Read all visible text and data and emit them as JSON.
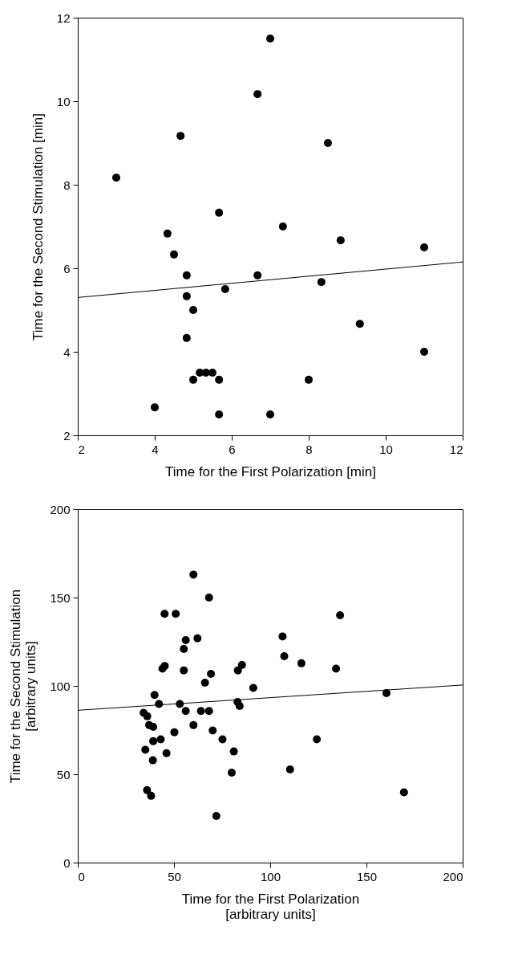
{
  "chart_data": [
    {
      "type": "scatter",
      "xlabel": "Time for the First Polarization [min]",
      "ylabel": "Time for the Second Stimulation [min]",
      "xlim": [
        2,
        12
      ],
      "ylim": [
        2,
        12
      ],
      "xticks": [
        2,
        4,
        6,
        8,
        10,
        12
      ],
      "yticks": [
        2,
        4,
        6,
        8,
        10,
        12
      ],
      "series": [
        {
          "marker": "circle",
          "color": "#000000",
          "x": [
            3,
            4,
            4.33,
            4.5,
            4.67,
            4.83,
            4.83,
            4.83,
            5,
            5,
            5.17,
            5.33,
            5.5,
            5.67,
            5.67,
            5.67,
            5.83,
            6.67,
            6.67,
            7,
            7,
            7.33,
            8,
            8.33,
            8.5,
            8.83,
            9.33,
            11,
            11
          ],
          "values": [
            8.17,
            2.67,
            6.83,
            6.33,
            9.17,
            5.83,
            5.33,
            4.33,
            5,
            3.33,
            3.5,
            3.5,
            3.5,
            3.33,
            7.33,
            2.5,
            5.5,
            10.17,
            5.83,
            11.5,
            2.5,
            7,
            3.33,
            5.67,
            9,
            6.67,
            4.67,
            6.5,
            4
          ]
        },
        {
          "type": "line",
          "marker": "none",
          "color": "#000000",
          "x": [
            2,
            12
          ],
          "values": [
            5.3,
            6.15
          ]
        }
      ]
    },
    {
      "type": "scatter",
      "xlabel": "Time for the First Polarization\n[arbitrary units]",
      "ylabel": "Time for the Second Stimulation\n[arbitrary units]",
      "xlim": [
        0,
        200
      ],
      "ylim": [
        0,
        200
      ],
      "xticks": [
        0,
        50,
        100,
        150,
        200
      ],
      "yticks": [
        0,
        50,
        100,
        150,
        200
      ],
      "series": [
        {
          "marker": "circle",
          "color": "#000000",
          "x": [
            60.1,
            68.2,
            45.1,
            50.9,
            136.3,
            106.4,
            62.2,
            56.1,
            55.1,
            107.3,
            116.2,
            85.3,
            83.2,
            134.2,
            45.2,
            44,
            55.1,
            69.2,
            66.1,
            91.2,
            160.4,
            39.9,
            42.2,
            53,
            83,
            84.1,
            34.2,
            36.1,
            56.1,
            64,
            68.2,
            37.1,
            39.2,
            60.1,
            50.2,
            70.1,
            75.2,
            39.2,
            43.1,
            124.2,
            35.1,
            46.1,
            81.1,
            39,
            80,
            110.3,
            36,
            38.1,
            169.5,
            72
          ],
          "values": [
            163,
            150,
            140.8,
            140.8,
            140,
            128,
            126.9,
            125.9,
            120.9,
            116.8,
            112.8,
            111.8,
            108.8,
            109.8,
            111.3,
            109.8,
            108.8,
            106.8,
            101.8,
            98.9,
            95.9,
            94.9,
            89.8,
            89.8,
            90.9,
            88.6,
            84.8,
            82.8,
            85.8,
            85.8,
            85.8,
            77.8,
            76.8,
            77.8,
            73.8,
            74.8,
            69.8,
            68.7,
            69.8,
            69.8,
            63.9,
            61.9,
            62.9,
            57.9,
            50.9,
            52.7,
            41,
            37.8,
            39.8,
            26.4
          ]
        },
        {
          "type": "line",
          "marker": "none",
          "color": "#000000",
          "x": [
            0,
            200
          ],
          "values": [
            86.2,
            100.5
          ]
        }
      ]
    }
  ]
}
